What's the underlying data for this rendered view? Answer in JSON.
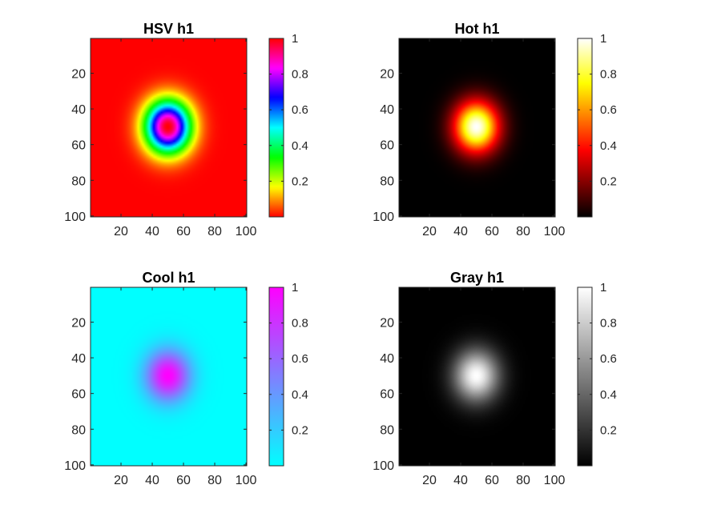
{
  "chart_data": [
    {
      "type": "heatmap",
      "title": "HSV h1",
      "colormap": "hsv",
      "xlim": [
        0.5,
        100.5
      ],
      "ylim": [
        0.5,
        100.5
      ],
      "y_reversed": true,
      "x_ticks": [
        "20",
        "40",
        "60",
        "80",
        "100"
      ],
      "x_tick_values": [
        20,
        40,
        60,
        80,
        100
      ],
      "y_ticks": [
        "20",
        "40",
        "60",
        "80",
        "100"
      ],
      "y_tick_values": [
        20,
        40,
        60,
        80,
        100
      ],
      "colorbar": {
        "range": [
          0,
          1
        ],
        "ticks": [
          "0.2",
          "0.4",
          "0.6",
          "0.8",
          "1"
        ],
        "tick_values": [
          0.2,
          0.4,
          0.6,
          0.8,
          1.0
        ]
      },
      "data": {
        "function": "gaussian",
        "center": [
          50,
          50
        ],
        "sigma": 10,
        "peak": 1,
        "size": [
          100,
          100
        ]
      }
    },
    {
      "type": "heatmap",
      "title": "Hot h1",
      "colormap": "hot",
      "xlim": [
        0.5,
        100.5
      ],
      "ylim": [
        0.5,
        100.5
      ],
      "y_reversed": true,
      "x_ticks": [
        "20",
        "40",
        "60",
        "80",
        "100"
      ],
      "x_tick_values": [
        20,
        40,
        60,
        80,
        100
      ],
      "y_ticks": [
        "20",
        "40",
        "60",
        "80",
        "100"
      ],
      "y_tick_values": [
        20,
        40,
        60,
        80,
        100
      ],
      "colorbar": {
        "range": [
          0,
          1
        ],
        "ticks": [
          "0.2",
          "0.4",
          "0.6",
          "0.8",
          "1"
        ],
        "tick_values": [
          0.2,
          0.4,
          0.6,
          0.8,
          1.0
        ]
      },
      "data": {
        "function": "gaussian",
        "center": [
          50,
          50
        ],
        "sigma": 10,
        "peak": 1,
        "size": [
          100,
          100
        ]
      }
    },
    {
      "type": "heatmap",
      "title": "Cool h1",
      "colormap": "cool",
      "xlim": [
        0.5,
        100.5
      ],
      "ylim": [
        0.5,
        100.5
      ],
      "y_reversed": true,
      "x_ticks": [
        "20",
        "40",
        "60",
        "80",
        "100"
      ],
      "x_tick_values": [
        20,
        40,
        60,
        80,
        100
      ],
      "y_ticks": [
        "20",
        "40",
        "60",
        "80",
        "100"
      ],
      "y_tick_values": [
        20,
        40,
        60,
        80,
        100
      ],
      "colorbar": {
        "range": [
          0,
          1
        ],
        "ticks": [
          "0.2",
          "0.4",
          "0.6",
          "0.8",
          "1"
        ],
        "tick_values": [
          0.2,
          0.4,
          0.6,
          0.8,
          1.0
        ]
      },
      "data": {
        "function": "gaussian",
        "center": [
          50,
          50
        ],
        "sigma": 10,
        "peak": 1,
        "size": [
          100,
          100
        ]
      }
    },
    {
      "type": "heatmap",
      "title": "Gray h1",
      "colormap": "gray",
      "xlim": [
        0.5,
        100.5
      ],
      "ylim": [
        0.5,
        100.5
      ],
      "y_reversed": true,
      "x_ticks": [
        "20",
        "40",
        "60",
        "80",
        "100"
      ],
      "x_tick_values": [
        20,
        40,
        60,
        80,
        100
      ],
      "y_ticks": [
        "20",
        "40",
        "60",
        "80",
        "100"
      ],
      "y_tick_values": [
        20,
        40,
        60,
        80,
        100
      ],
      "colorbar": {
        "range": [
          0,
          1
        ],
        "ticks": [
          "0.2",
          "0.4",
          "0.6",
          "0.8",
          "1"
        ],
        "tick_values": [
          0.2,
          0.4,
          0.6,
          0.8,
          1.0
        ]
      },
      "data": {
        "function": "gaussian",
        "center": [
          50,
          50
        ],
        "sigma": 10,
        "peak": 1,
        "size": [
          100,
          100
        ]
      }
    }
  ],
  "colors": {
    "axis_line": "#262626",
    "title_text": "#000000",
    "background": "#ffffff"
  }
}
